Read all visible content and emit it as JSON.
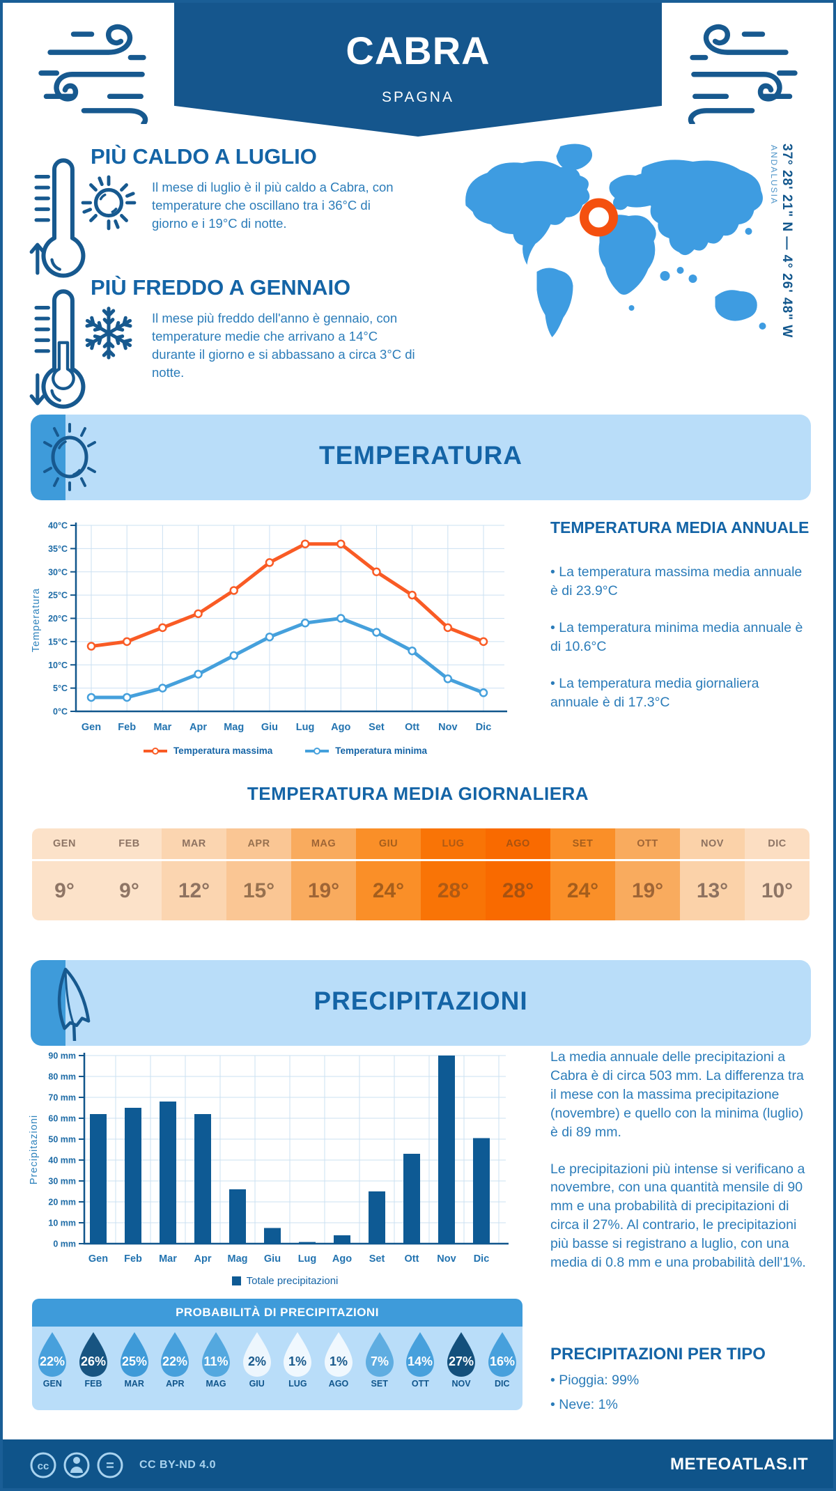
{
  "header": {
    "city": "CABRA",
    "country": "SPAGNA"
  },
  "highlights": {
    "hot": {
      "title": "PIÙ CALDO A LUGLIO",
      "text": "Il mese di luglio è il più caldo a Cabra, con temperature che oscillano tra i 36°C di giorno e i 19°C di notte."
    },
    "cold": {
      "title": "PIÙ FREDDO A GENNAIO",
      "text": "Il mese più freddo dell'anno è gennaio, con temperature medie che arrivano a 14°C durante il giorno e si abbassano a circa 3°C di notte."
    }
  },
  "map": {
    "coordinates": "37° 28' 21\" N — 4° 26' 48\" W",
    "region": "ANDALUSIA"
  },
  "sections": {
    "temperature": {
      "title": "TEMPERATURA",
      "annual_title": "TEMPERATURA MEDIA ANNUALE",
      "annual_bullets": [
        "La temperatura massima media annuale è di 23.9°C",
        "La temperatura minima media annuale è di 10.6°C",
        "La temperatura media giornaliera annuale è di 17.3°C"
      ],
      "daily_title": "TEMPERATURA MEDIA GIORNALIERA"
    },
    "precipitation": {
      "title": "PRECIPITAZIONI",
      "paragraphs": [
        "La media annuale delle precipitazioni a Cabra è di circa 503 mm. La differenza tra il mese con la massima precipitazione (novembre) e quello con la minima (luglio) è di 89 mm.",
        "Le precipitazioni più intense si verificano a novembre, con una quantità mensile di 90 mm e una probabilità di precipitazioni di circa il 27%. Al contrario, le precipitazioni più basse si registrano a luglio, con una media di 0.8 mm e una probabilità dell'1%."
      ],
      "probability_title": "PROBABILITÀ DI PRECIPITAZIONI",
      "probability_drops": [
        {
          "month": "GEN",
          "value": "22%",
          "fill": "#47A0DC",
          "text": "#FFFFFF"
        },
        {
          "month": "FEB",
          "value": "26%",
          "fill": "#175481",
          "text": "#FFFFFF"
        },
        {
          "month": "MAR",
          "value": "25%",
          "fill": "#3E9AD8",
          "text": "#FFFFFF"
        },
        {
          "month": "APR",
          "value": "22%",
          "fill": "#47A0DC",
          "text": "#FFFFFF"
        },
        {
          "month": "MAG",
          "value": "11%",
          "fill": "#54A8DF",
          "text": "#FFFFFF"
        },
        {
          "month": "GIU",
          "value": "2%",
          "fill": "#EDF6FD",
          "text": "#1A5A8C"
        },
        {
          "month": "LUG",
          "value": "1%",
          "fill": "#F0F8FE",
          "text": "#1A5A8C"
        },
        {
          "month": "AGO",
          "value": "1%",
          "fill": "#F0F8FE",
          "text": "#1A5A8C"
        },
        {
          "month": "SET",
          "value": "7%",
          "fill": "#5FADE1",
          "text": "#FFFFFF"
        },
        {
          "month": "OTT",
          "value": "14%",
          "fill": "#47A0DC",
          "text": "#FFFFFF"
        },
        {
          "month": "NOV",
          "value": "27%",
          "fill": "#14507C",
          "text": "#FFFFFF"
        },
        {
          "month": "DIC",
          "value": "16%",
          "fill": "#47A0DC",
          "text": "#FFFFFF"
        }
      ],
      "per_tipo_title": "PRECIPITAZIONI PER TIPO",
      "per_tipo_bullets": [
        "Pioggia: 99%",
        "Neve: 1%"
      ]
    }
  },
  "monthly_table": {
    "cells": [
      {
        "month": "GEN",
        "value": "9°",
        "bg": "#FCE2C9",
        "fg": "#8E7565"
      },
      {
        "month": "FEB",
        "value": "9°",
        "bg": "#FCE2C9",
        "fg": "#8E7565"
      },
      {
        "month": "MAR",
        "value": "12°",
        "bg": "#FBD5B0",
        "fg": "#8E7260"
      },
      {
        "month": "APR",
        "value": "15°",
        "bg": "#FAC694",
        "fg": "#97714F"
      },
      {
        "month": "MAG",
        "value": "19°",
        "bg": "#F9AB5E",
        "fg": "#9F6536"
      },
      {
        "month": "GIU",
        "value": "24°",
        "bg": "#FA8F28",
        "fg": "#A55E1C"
      },
      {
        "month": "LUG",
        "value": "28°",
        "bg": "#F97406",
        "fg": "#AF5A14"
      },
      {
        "month": "AGO",
        "value": "28°",
        "bg": "#F96A00",
        "fg": "#A85210"
      },
      {
        "month": "SET",
        "value": "24°",
        "bg": "#FA8F28",
        "fg": "#A55E1C"
      },
      {
        "month": "OTT",
        "value": "19°",
        "bg": "#F9AB5E",
        "fg": "#9F6536"
      },
      {
        "month": "NOV",
        "value": "13°",
        "bg": "#FBD2A9",
        "fg": "#8E7260"
      },
      {
        "month": "DIC",
        "value": "10°",
        "bg": "#FCDEC2",
        "fg": "#8E7565"
      }
    ]
  },
  "chart_data": [
    {
      "type": "line",
      "title": "Temperatura media mensile",
      "categories": [
        "Gen",
        "Feb",
        "Mar",
        "Apr",
        "Mag",
        "Giu",
        "Lug",
        "Ago",
        "Set",
        "Ott",
        "Nov",
        "Dic"
      ],
      "series": [
        {
          "name": "Temperatura massima",
          "color": "#F95B25",
          "values": [
            14,
            15,
            18,
            21,
            26,
            32,
            36,
            36,
            30,
            25,
            18,
            15
          ]
        },
        {
          "name": "Temperatura minima",
          "color": "#45A0DC",
          "values": [
            3,
            3,
            5,
            8,
            12,
            16,
            19,
            20,
            17,
            13,
            7,
            4
          ]
        }
      ],
      "ylabel": "Temperatura",
      "ylim": [
        0,
        40
      ],
      "ytick_step": 5,
      "ytick_suffix": "°C",
      "grid": true,
      "legend_position": "bottom"
    },
    {
      "type": "bar",
      "title": "Totale precipitazioni mensili",
      "categories": [
        "Gen",
        "Feb",
        "Mar",
        "Apr",
        "Mag",
        "Giu",
        "Lug",
        "Ago",
        "Set",
        "Ott",
        "Nov",
        "Dic"
      ],
      "series": [
        {
          "name": "Totale precipitazioni",
          "color": "#0E5A94",
          "values": [
            62,
            65,
            68,
            62,
            26,
            7.5,
            0.8,
            4,
            25,
            43,
            90,
            50.5
          ]
        }
      ],
      "ylabel": "Precipitazioni",
      "ylim": [
        0,
        90
      ],
      "ytick_step": 10,
      "ytick_suffix": " mm",
      "grid": true,
      "legend_position": "bottom"
    }
  ],
  "footer": {
    "license": "CC BY-ND 4.0",
    "site": "METEOATLAS.IT"
  },
  "colors": {
    "primary_dark": "#15568D",
    "heading": "#1464A6",
    "body": "#2B7CB9",
    "banner_bg": "#B9DDF9",
    "accent": "#3E9BDA",
    "map": "#3E9CE1",
    "marker": "#F4500F",
    "grid": "#CBE0F2",
    "axis": "#11568C",
    "footer_bg": "#0F548A",
    "footer_text": "#A9D3EF"
  }
}
